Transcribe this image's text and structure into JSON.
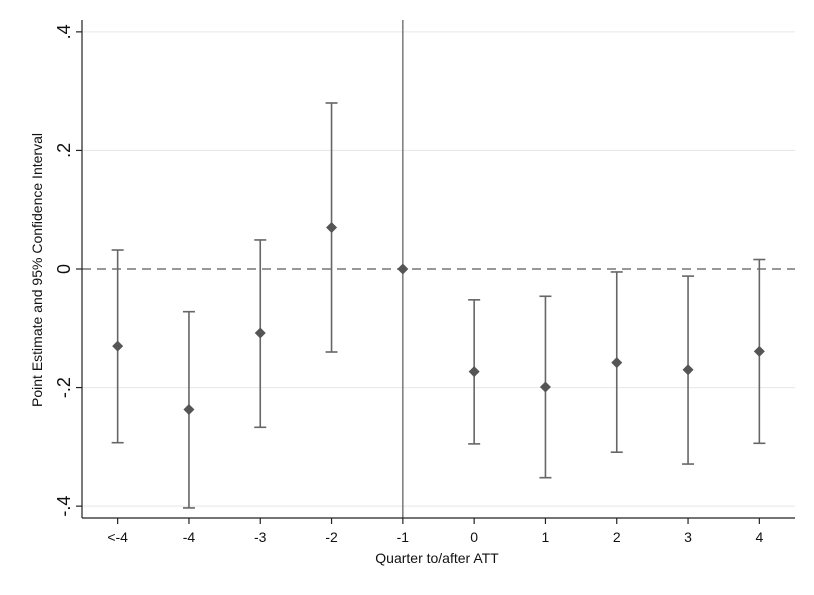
{
  "chart_data": {
    "type": "scatter",
    "subtype": "coefficient-plot-with-error-bars",
    "title": "",
    "xlabel": "Quarter to/after ATT",
    "ylabel": "Point Estimate and 95% Confidence Interval",
    "categories": [
      "<-4",
      "-4",
      "-3",
      "-2",
      "-1",
      "0",
      "1",
      "2",
      "3",
      "4"
    ],
    "series": [
      {
        "estimate": [
          -0.13,
          -0.237,
          -0.108,
          0.07,
          0.0,
          -0.173,
          -0.199,
          -0.158,
          -0.17,
          -0.139
        ],
        "ci_low": [
          -0.293,
          -0.403,
          -0.267,
          -0.14,
          -0.4,
          -0.295,
          -0.352,
          -0.309,
          -0.329,
          -0.294
        ],
        "ci_high": [
          0.032,
          -0.072,
          0.049,
          0.28,
          0.4,
          -0.052,
          -0.046,
          -0.005,
          -0.012,
          0.016
        ]
      }
    ],
    "yticks": [
      -0.4,
      -0.2,
      0,
      0.2,
      0.4
    ],
    "ytick_labels": [
      "-.4",
      "-.2",
      "0",
      ".2",
      ".4"
    ],
    "ylim": [
      -0.42,
      0.42
    ],
    "reference_line": {
      "y": 0,
      "style": "dashed"
    },
    "vertical_line": {
      "x": "-1"
    },
    "grid": "horizontal",
    "legend": "none",
    "colors": {
      "marker": "#555555",
      "errorbar": "#666666",
      "axis": "#222222",
      "grid": "#e6e6e6",
      "refline": "#8a8a8a"
    }
  }
}
